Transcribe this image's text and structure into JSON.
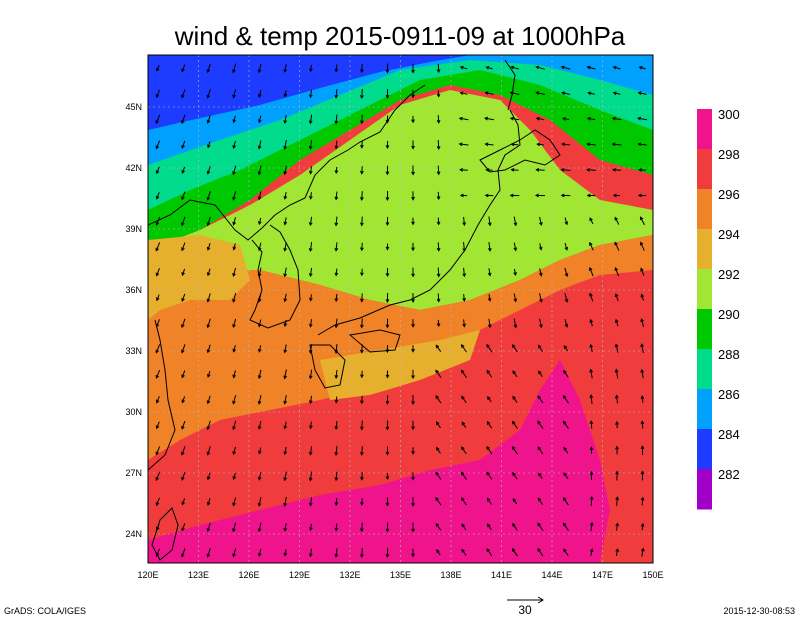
{
  "title": "wind & temp 2015-0911-09 at 1000hPa",
  "footer": {
    "left": "GrADS: COLA/IGES",
    "right": "2015-12-30-08:53",
    "vector_scale_label": "30"
  },
  "axes": {
    "x_ticks": [
      "120E",
      "123E",
      "126E",
      "129E",
      "132E",
      "135E",
      "138E",
      "141E",
      "144E",
      "147E",
      "150E"
    ],
    "y_ticks": [
      "45N",
      "42N",
      "39N",
      "36N",
      "33N",
      "30N",
      "27N",
      "24N"
    ]
  },
  "colorbar": {
    "labels": [
      "300",
      "298",
      "296",
      "294",
      "292",
      "290",
      "288",
      "286",
      "284",
      "282"
    ],
    "colors": [
      "#f0148c",
      "#f03c3c",
      "#f08228",
      "#e6af2d",
      "#a0e632",
      "#00c800",
      "#00dc8c",
      "#00a0ff",
      "#1e3cff",
      "#a000c8"
    ]
  },
  "palette": {
    "land_line": "#000000",
    "grid": "#bbbbbb",
    "arrow": "#000000"
  }
}
